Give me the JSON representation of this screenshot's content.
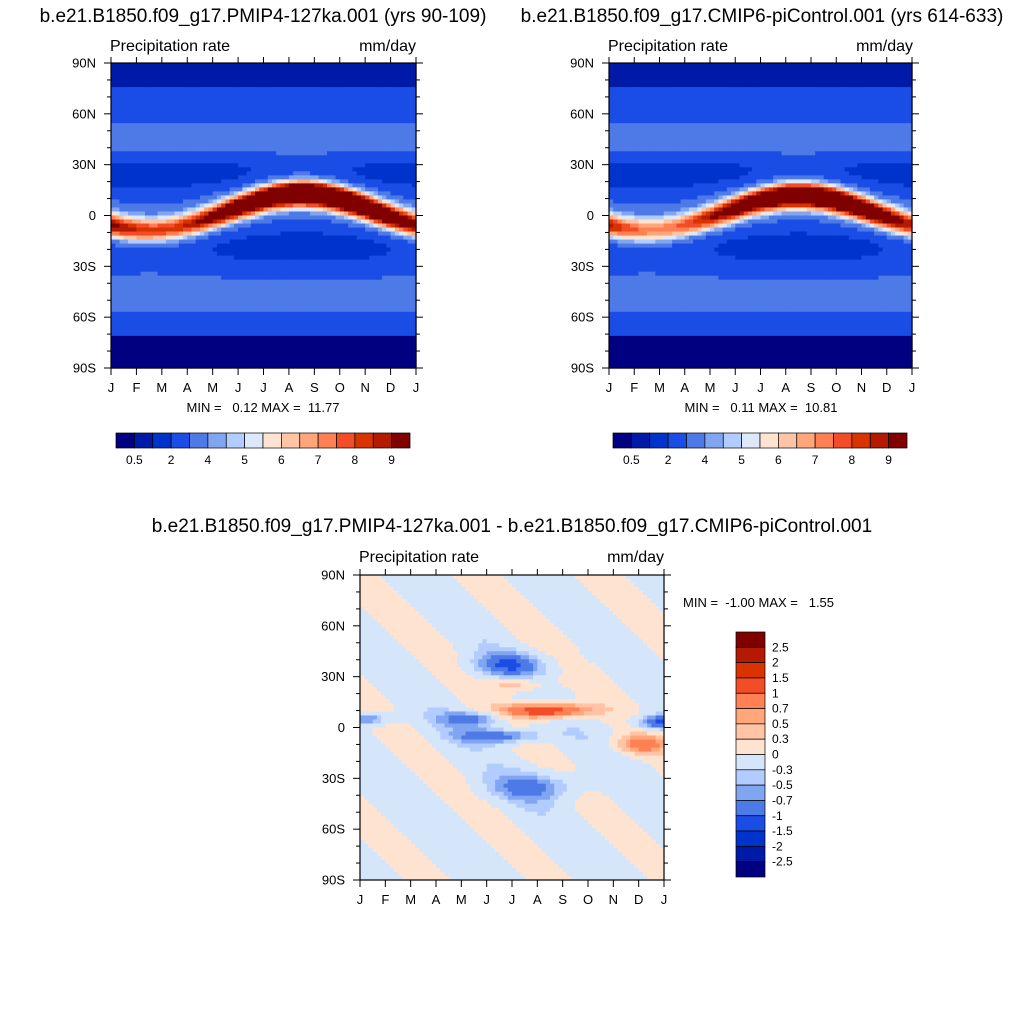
{
  "chart_data": [
    {
      "type": "heatmap",
      "title": "b.e21.B1850.f09_g17.PMIP4-127ka.001 (yrs 90-109)",
      "left_label": "Precipitation rate",
      "right_label": "mm/day",
      "x_ticks": [
        "J",
        "F",
        "M",
        "A",
        "M",
        "J",
        "J",
        "A",
        "S",
        "O",
        "N",
        "D",
        "J"
      ],
      "y_ticks": [
        "90N",
        "60N",
        "30N",
        "0",
        "30S",
        "60S",
        "90S"
      ],
      "stats": "MIN =   0.12 MAX =  11.77",
      "colorbar_labels": [
        "0.5",
        "2",
        "4",
        "5",
        "6",
        "7",
        "8",
        "9"
      ],
      "itcz": {
        "min_lat": -9,
        "max_lat": 13,
        "peak_months": [
          "J",
          "J",
          "A",
          "S"
        ]
      }
    },
    {
      "type": "heatmap",
      "title": "b.e21.B1850.f09_g17.CMIP6-piControl.001 (yrs 614-633)",
      "left_label": "Precipitation rate",
      "right_label": "mm/day",
      "x_ticks": [
        "J",
        "F",
        "M",
        "A",
        "M",
        "J",
        "J",
        "A",
        "S",
        "O",
        "N",
        "D",
        "J"
      ],
      "y_ticks": [
        "90N",
        "60N",
        "30N",
        "0",
        "30S",
        "60S",
        "90S"
      ],
      "stats": "MIN =   0.11 MAX =  10.81",
      "colorbar_labels": [
        "0.5",
        "2",
        "4",
        "5",
        "6",
        "7",
        "8",
        "9"
      ],
      "itcz": {
        "min_lat": -9,
        "max_lat": 12,
        "peak_months": [
          "J",
          "J",
          "A",
          "S"
        ]
      }
    },
    {
      "type": "heatmap",
      "title": "b.e21.B1850.f09_g17.PMIP4-127ka.001 - b.e21.B1850.f09_g17.CMIP6-piControl.001",
      "left_label": "Precipitation rate",
      "right_label": "mm/day",
      "x_ticks": [
        "J",
        "F",
        "M",
        "A",
        "M",
        "J",
        "J",
        "A",
        "S",
        "O",
        "N",
        "D",
        "J"
      ],
      "y_ticks": [
        "90N",
        "60N",
        "30N",
        "0",
        "30S",
        "60S",
        "90S"
      ],
      "stats": "MIN =  -1.00 MAX =   1.55",
      "colorbar_labels": [
        "2.5",
        "2",
        "1.5",
        "1",
        "0.7",
        "0.5",
        "0.3",
        "0",
        "-0.3",
        "-0.5",
        "-0.7",
        "-1",
        "-1.5",
        "-2",
        "-2.5"
      ]
    }
  ],
  "colors": {
    "seq_scale": [
      "#000080",
      "#001aa8",
      "#0033cc",
      "#1a4de6",
      "#4d7ae6",
      "#80a6f2",
      "#b3ccff",
      "#dde8fa",
      "#ffe3d1",
      "#ffc4a6",
      "#ffa67a",
      "#ff8052",
      "#f24d26",
      "#d93300",
      "#b31a00",
      "#800000"
    ],
    "div_scale": [
      "#800000",
      "#b31a00",
      "#d93300",
      "#f24d26",
      "#ff8052",
      "#ffa67a",
      "#ffc4a6",
      "#ffe3d1",
      "#d6e6fa",
      "#b3ccff",
      "#80a6f2",
      "#4d7ae6",
      "#1a4de6",
      "#0033cc",
      "#001aa8",
      "#000080"
    ]
  }
}
